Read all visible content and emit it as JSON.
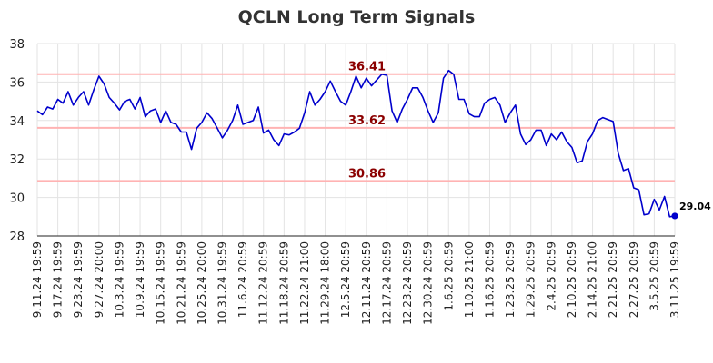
{
  "chart_data": {
    "type": "line",
    "title": "QCLN Long Term Signals",
    "xlabel": "",
    "ylabel": "",
    "ylim": [
      28,
      38
    ],
    "yticks": [
      28,
      30,
      32,
      34,
      36,
      38
    ],
    "grid": true,
    "line_color": "#0000cc",
    "level_line_color": "#ffb3b3",
    "level_label_color": "#8b0000",
    "x_tick_labels": [
      "9.11.24 19:59",
      "9.17.24 19:59",
      "9.23.24 19:59",
      "9.27.24 20:00",
      "10.3.24 19:59",
      "10.9.24 19:59",
      "10.15.24 19:59",
      "10.21.24 19:59",
      "10.25.24 20:00",
      "10.31.24 19:59",
      "11.6.24 20:59",
      "11.12.24 20:59",
      "11.18.24 20:59",
      "11.22.24 21:00",
      "11.29.24 18:00",
      "12.5.24 20:59",
      "12.11.24 20:59",
      "12.17.24 20:59",
      "12.23.24 20:59",
      "12.30.24 20:59",
      "1.6.25 20:59",
      "1.10.25 21:00",
      "1.16.25 20:59",
      "1.23.25 20:59",
      "1.29.25 20:59",
      "2.4.25 20:59",
      "2.10.25 20:59",
      "2.14.25 21:00",
      "2.21.25 20:59",
      "2.27.25 20:59",
      "3.5.25 20:59",
      "3.11.25 19:59"
    ],
    "levels": [
      {
        "value": 36.41,
        "label": "36.41"
      },
      {
        "value": 33.62,
        "label": "33.62"
      },
      {
        "value": 30.86,
        "label": "30.86"
      }
    ],
    "last_value": {
      "value": 29.04,
      "label": "29.04"
    },
    "series": [
      {
        "values": [
          34.5,
          34.3,
          34.7,
          34.6,
          35.1,
          34.9,
          35.5,
          34.8,
          35.2,
          35.5,
          34.8,
          35.6,
          36.3,
          35.9,
          35.2,
          34.9,
          34.55,
          35.0,
          35.1,
          34.6,
          35.2,
          34.2,
          34.5,
          34.6,
          33.9,
          34.5,
          33.9,
          33.8,
          33.4,
          33.4,
          32.5,
          33.6,
          33.9,
          34.4,
          34.1,
          33.6,
          33.1,
          33.5,
          34.0,
          34.8,
          33.8,
          33.9,
          34.0,
          34.7,
          33.35,
          33.5,
          33.0,
          32.7,
          33.3,
          33.25,
          33.4,
          33.6,
          34.4,
          35.5,
          34.8,
          35.1,
          35.5,
          36.05,
          35.5,
          35.0,
          34.8,
          35.5,
          36.3,
          35.7,
          36.2,
          35.8,
          36.1,
          36.4,
          36.35,
          34.5,
          33.9,
          34.6,
          35.1,
          35.7,
          35.7,
          35.2,
          34.5,
          33.9,
          34.4,
          36.2,
          36.6,
          36.4,
          35.1,
          35.1,
          34.35,
          34.2,
          34.2,
          34.9,
          35.1,
          35.2,
          34.8,
          33.9,
          34.4,
          34.8,
          33.3,
          32.75,
          33.0,
          33.5,
          33.5,
          32.7,
          33.3,
          33.0,
          33.4,
          32.9,
          32.6,
          31.8,
          31.9,
          32.9,
          33.3,
          34.0,
          34.15,
          34.05,
          33.95,
          32.3,
          31.4,
          31.5,
          30.5,
          30.4,
          29.1,
          29.15,
          29.9,
          29.35,
          30.05,
          29.0,
          29.04
        ]
      }
    ]
  }
}
